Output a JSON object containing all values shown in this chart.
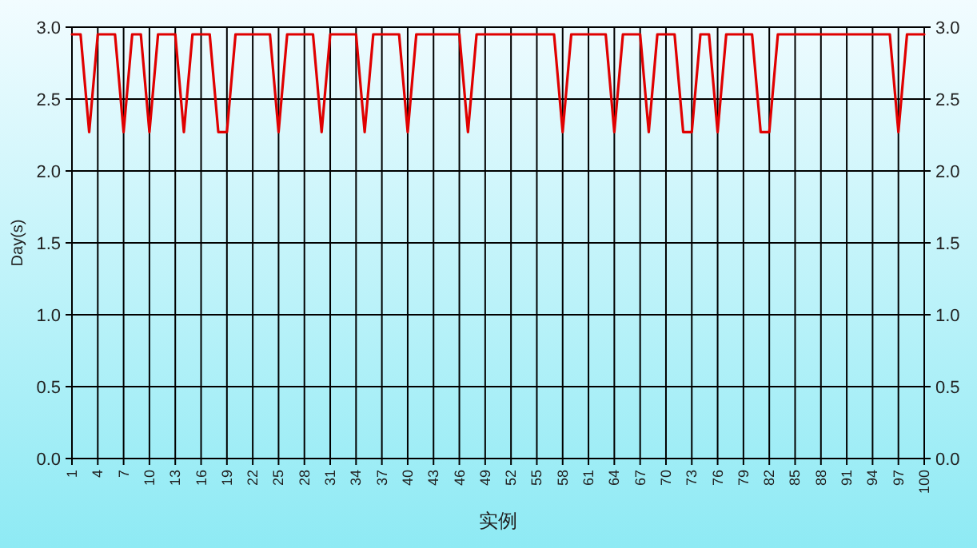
{
  "chart_data": {
    "type": "line",
    "xlabel": "实例",
    "ylabel": "Day(s)",
    "categories": [
      "1",
      null,
      null,
      "4",
      null,
      null,
      "7",
      null,
      null,
      "10",
      null,
      null,
      "13",
      null,
      null,
      "16",
      null,
      null,
      "19",
      null,
      null,
      "22",
      null,
      null,
      "25",
      null,
      null,
      "28",
      null,
      null,
      "31",
      null,
      null,
      "34",
      null,
      null,
      "37",
      null,
      null,
      "40",
      null,
      null,
      "43",
      null,
      null,
      "46",
      null,
      null,
      "49",
      null,
      null,
      "52",
      null,
      null,
      "55",
      null,
      null,
      "58",
      null,
      null,
      "61",
      null,
      null,
      "64",
      null,
      null,
      "67",
      null,
      null,
      "70",
      null,
      null,
      "73",
      null,
      null,
      "76",
      null,
      null,
      "79",
      null,
      null,
      "82",
      null,
      null,
      "85",
      null,
      null,
      "88",
      null,
      null,
      "91",
      null,
      null,
      "94",
      null,
      null,
      "97",
      null,
      null,
      "100"
    ],
    "series": [
      {
        "color": "#e00000",
        "values": [
          2.95,
          2.95,
          2.27,
          2.95,
          2.95,
          2.95,
          2.27,
          2.95,
          2.95,
          2.27,
          2.95,
          2.95,
          2.95,
          2.27,
          2.95,
          2.95,
          2.95,
          2.27,
          2.27,
          2.95,
          2.95,
          2.95,
          2.95,
          2.95,
          2.27,
          2.95,
          2.95,
          2.95,
          2.95,
          2.27,
          2.95,
          2.95,
          2.95,
          2.95,
          2.27,
          2.95,
          2.95,
          2.95,
          2.95,
          2.27,
          2.95,
          2.95,
          2.95,
          2.95,
          2.95,
          2.95,
          2.27,
          2.95,
          2.95,
          2.95,
          2.95,
          2.95,
          2.95,
          2.95,
          2.95,
          2.95,
          2.95,
          2.27,
          2.95,
          2.95,
          2.95,
          2.95,
          2.95,
          2.27,
          2.95,
          2.95,
          2.95,
          2.27,
          2.95,
          2.95,
          2.95,
          2.27,
          2.27,
          2.95,
          2.95,
          2.27,
          2.95,
          2.95,
          2.95,
          2.95,
          2.27,
          2.27,
          2.95,
          2.95,
          2.95,
          2.95,
          2.95,
          2.95,
          2.95,
          2.95,
          2.95,
          2.95,
          2.95,
          2.95,
          2.95,
          2.95,
          2.27,
          2.95,
          2.95,
          2.95
        ]
      }
    ],
    "ylim": [
      0,
      3
    ],
    "yticks": [
      {
        "value": 0,
        "label": "0.0"
      },
      {
        "value": 0.5,
        "label": "0.5"
      },
      {
        "value": 1,
        "label": "1.0"
      },
      {
        "value": 1.5,
        "label": "1.5"
      },
      {
        "value": 2,
        "label": "2.0"
      },
      {
        "value": 2.5,
        "label": "2.5"
      },
      {
        "value": 3,
        "label": "3.0"
      }
    ],
    "y2lim": [
      0,
      3
    ],
    "y2ticks": [
      {
        "value": 0,
        "label": "0.0"
      },
      {
        "value": 0.5,
        "label": "0.5"
      },
      {
        "value": 1,
        "label": "1.0"
      },
      {
        "value": 1.5,
        "label": "1.5"
      },
      {
        "value": 2,
        "label": "2.0"
      },
      {
        "value": 2.5,
        "label": "2.5"
      },
      {
        "value": 3,
        "label": "3.0"
      }
    ],
    "grid": true,
    "marker": "none",
    "line_style": "solid"
  }
}
